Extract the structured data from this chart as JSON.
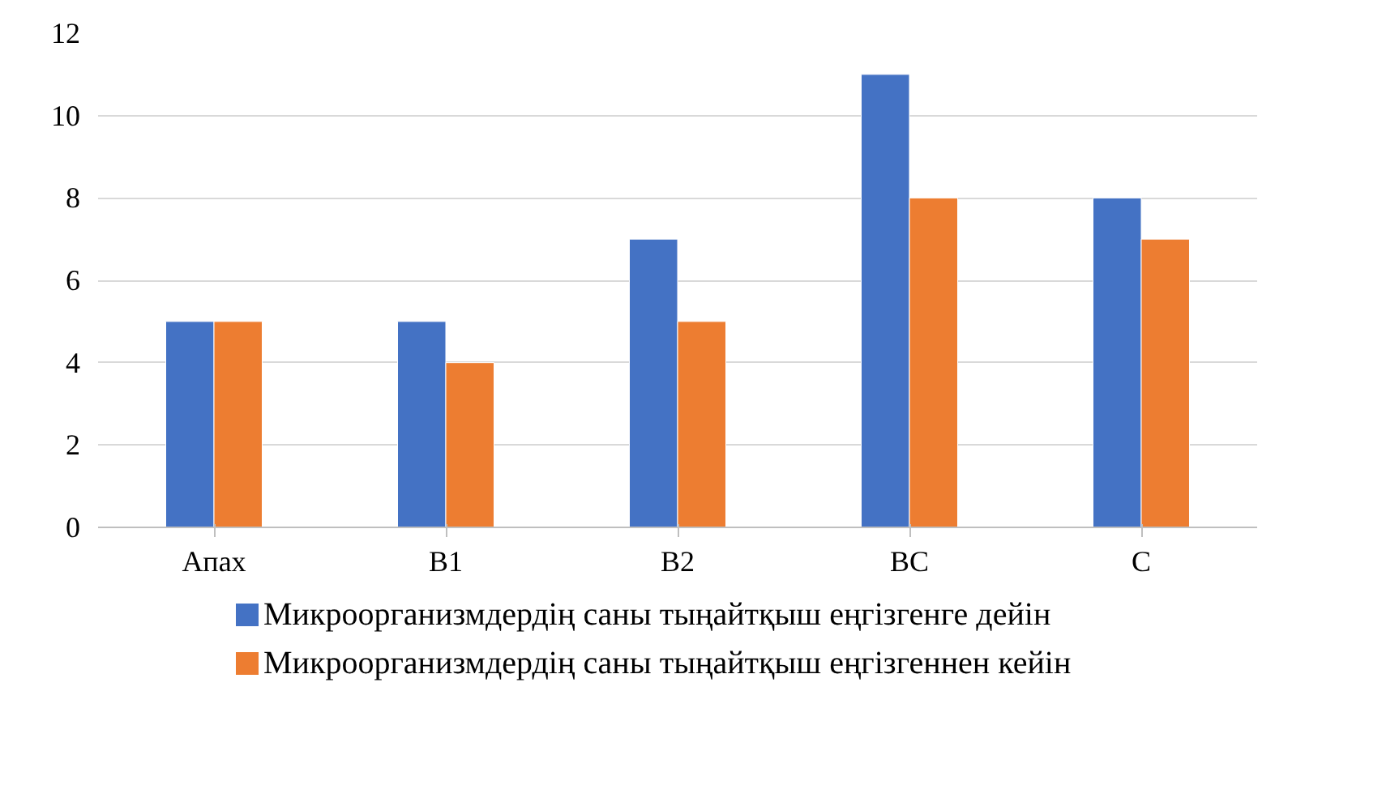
{
  "chart_data": {
    "type": "bar",
    "categories": [
      "Апах",
      "B1",
      "B2",
      "BC",
      "C"
    ],
    "series": [
      {
        "name": "Микроорганизмдердің саны тыңайтқыш еңгізгенге дейін",
        "color": "#4472c4",
        "values": [
          5,
          5,
          7,
          11,
          8
        ]
      },
      {
        "name": "Микроорганизмдердің саны тыңайтқыш еңгізгеннен кейін",
        "color": "#ed7d31",
        "values": [
          5,
          4,
          5,
          8,
          7
        ]
      }
    ],
    "ylim": [
      0,
      12
    ],
    "yticks": [
      0,
      2,
      4,
      6,
      8,
      10,
      12
    ],
    "grid": "y",
    "legend": "bottom"
  }
}
